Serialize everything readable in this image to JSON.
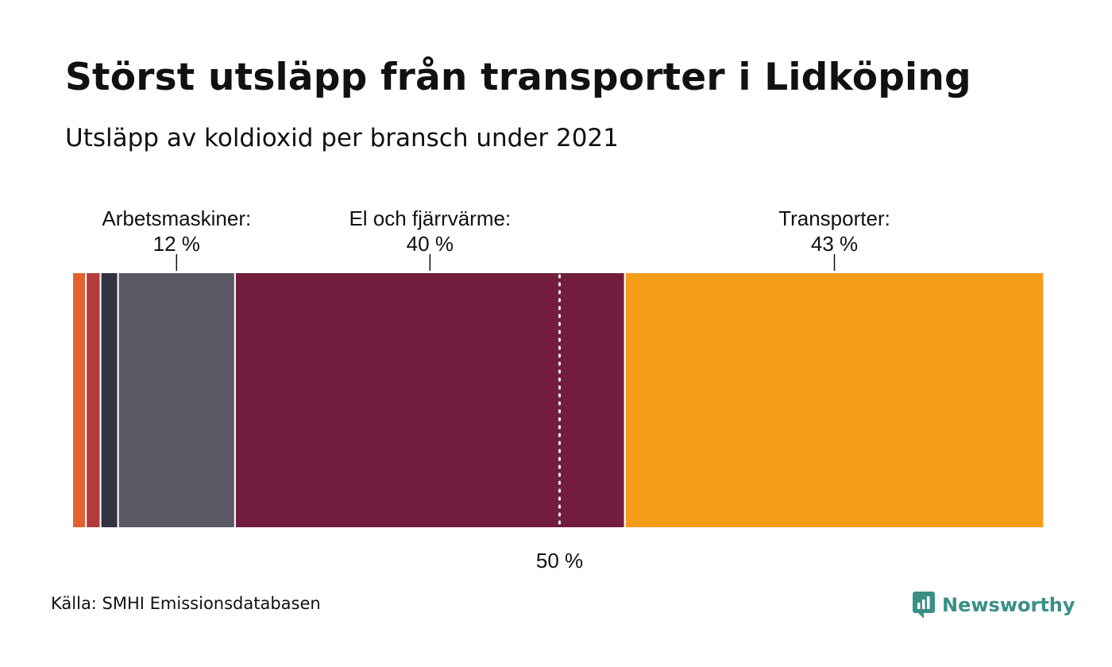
{
  "header": {
    "title": "Störst utsläpp från transporter i Lidköping",
    "subtitle": "Utsläpp av koldioxid per bransch under 2021"
  },
  "footer": {
    "source": "Källa: SMHI Emissionsdatabasen",
    "brand": "Newsworthy",
    "brand_icon": "newsworthy-logo-icon",
    "brand_color": "#3a8f86"
  },
  "chart_data": {
    "type": "bar",
    "orientation": "horizontal-stacked-100",
    "unit": "%",
    "xlim": [
      0,
      100
    ],
    "segments": [
      {
        "value": 1.4,
        "color": "#e2622f"
      },
      {
        "value": 1.5,
        "color": "#b53a3b"
      },
      {
        "value": 1.8,
        "color": "#33323f"
      },
      {
        "label": "Arbetsmaskiner:",
        "value": 12,
        "value_label": "12 %",
        "color": "#5a5865"
      },
      {
        "label": "El och fjärrvärme:",
        "value": 40,
        "value_label": "40 %",
        "color": "#721d3d"
      },
      {
        "label": "Transporter:",
        "value": 43,
        "value_label": "43 %",
        "color": "#f59c19"
      }
    ],
    "reference_line": {
      "value": 50,
      "label": "50 %",
      "style": "dotted"
    },
    "grid": false,
    "legend": "none"
  }
}
